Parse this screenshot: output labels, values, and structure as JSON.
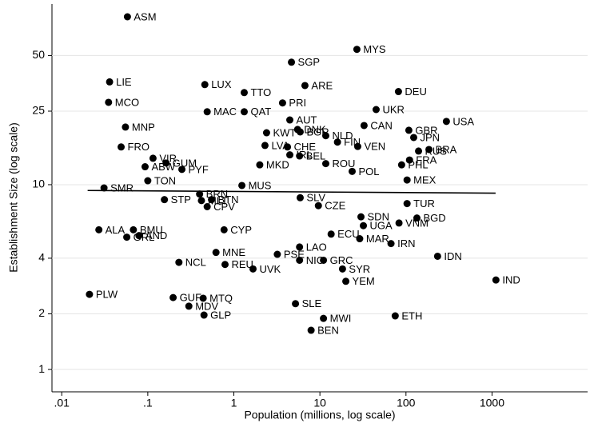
{
  "chart_data": {
    "type": "scatter",
    "x_label": "Population (millions, log scale)",
    "y_label": "Establishment Size (log scale)",
    "xscale": "log",
    "yscale": "log",
    "grid": true,
    "color": "#000000",
    "xlim": [
      0.0077,
      12900
    ],
    "ylim": [
      0.757,
      95
    ],
    "xticks": [
      {
        "value": 0.01,
        "label": ".01"
      },
      {
        "value": 0.1,
        "label": ".1"
      },
      1,
      10,
      100,
      1000
    ],
    "yticks": [
      1,
      2,
      4,
      10,
      25,
      50
    ],
    "labels": [
      "ASM",
      "MYS",
      "SGP",
      "LIE",
      "LUX",
      "ARE",
      "TTO",
      "DEU",
      "MCO",
      "PRI",
      "UKR",
      "MAC",
      "QAT",
      "AUT",
      "USA",
      "CAN",
      "MNP",
      "DNK",
      "GBR",
      "KWT",
      "BGR",
      "JPN",
      "NLD",
      "FIN",
      "LVA",
      "FRO",
      "CHE",
      "VEN",
      "RUS",
      "BRA",
      "IRL",
      "BEL",
      "FRA",
      "VIR",
      "GUM",
      "ABW",
      "PHL",
      "PYF",
      "ROU",
      "MKD",
      "POL",
      "TON",
      "MEX",
      "SMR",
      "MUS",
      "BRN",
      "STP",
      "MLT",
      "BTN",
      "SLV",
      "TUR",
      "CPV",
      "CZE",
      "VNM",
      "BGD",
      "SDN",
      "ALA",
      "BMU",
      "AND",
      "GRL",
      "CYP",
      "UGA",
      "MAR",
      "ECU",
      "IRN",
      "LAO",
      "MNE",
      "IDN",
      "PSE",
      "NIC",
      "GRC",
      "NCL",
      "REU",
      "UVK",
      "SYR",
      "IND",
      "YEM",
      "PLW",
      "GUF",
      "MTQ",
      "MDV",
      "SLE",
      "GLP",
      "MWI",
      "ETH",
      "BEN"
    ],
    "x": [
      0.058,
      26.9,
      4.67,
      0.036,
      0.46,
      6.7,
      1.32,
      81.8,
      0.035,
      3.68,
      45,
      0.49,
      1.32,
      4.47,
      295,
      32.6,
      0.055,
      5.5,
      108,
      2.4,
      5.9,
      123,
      11.7,
      16,
      2.3,
      0.049,
      4.2,
      27.5,
      140,
      185,
      4.47,
      5.8,
      110,
      0.115,
      0.163,
      0.093,
      89,
      0.249,
      11.7,
      2.0,
      23.7,
      0.1,
      103,
      0.031,
      1.24,
      0.4,
      0.156,
      0.42,
      0.55,
      5.9,
      103,
      0.49,
      9.6,
      83,
      134,
      30,
      0.027,
      0.068,
      0.079,
      0.057,
      0.77,
      32,
      29,
      13.5,
      67,
      5.8,
      0.62,
      233,
      3.2,
      5.8,
      11,
      0.23,
      0.79,
      1.67,
      18.3,
      1110,
      20,
      0.021,
      0.197,
      0.44,
      0.3,
      5.2,
      0.45,
      11,
      75,
      7.9
    ],
    "values": [
      81,
      54,
      46,
      36,
      34.8,
      34.4,
      31.5,
      31.9,
      27.9,
      27.7,
      25.5,
      24.8,
      24.8,
      22.4,
      22,
      20.9,
      20.5,
      19.9,
      19.7,
      19.1,
      19.3,
      18,
      18.4,
      17,
      16.3,
      16,
      16,
      16.1,
      15.2,
      15.5,
      14.5,
      14.3,
      13.6,
      13.9,
      13.1,
      12.5,
      12.8,
      12.1,
      13,
      12.8,
      11.8,
      10.5,
      10.6,
      9.6,
      9.9,
      8.9,
      8.3,
      8.2,
      8.3,
      8.5,
      7.9,
      7.6,
      7.7,
      6.2,
      6.6,
      6.7,
      5.7,
      5.7,
      5.3,
      5.2,
      5.7,
      6,
      5.1,
      5.4,
      4.8,
      4.6,
      4.3,
      4.1,
      4.2,
      3.9,
      3.9,
      3.8,
      3.7,
      3.5,
      3.5,
      3.05,
      3,
      2.55,
      2.45,
      2.43,
      2.2,
      2.27,
      1.97,
      1.89,
      1.95,
      1.63
    ],
    "fit": {
      "x": [
        0.02,
        1100
      ],
      "values": [
        9.3,
        9.0
      ]
    }
  }
}
